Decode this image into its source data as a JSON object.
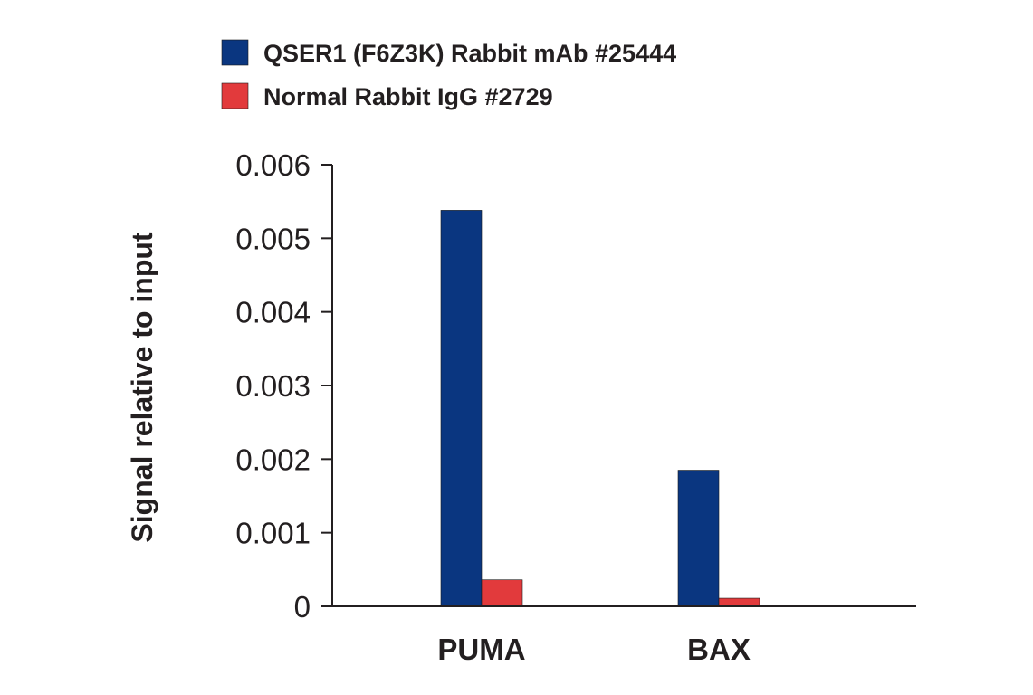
{
  "chart_data": {
    "type": "bar",
    "categories": [
      "PUMA",
      "BAX"
    ],
    "series": [
      {
        "name": "QSER1 (F6Z3K) Rabbit mAb #25444",
        "color": "#0a3680",
        "values": [
          0.00538,
          0.00185
        ]
      },
      {
        "name": "Normal Rabbit IgG #2729",
        "color": "#e23a3c",
        "values": [
          0.00036,
          0.00011
        ]
      }
    ],
    "title": "",
    "xlabel": "",
    "ylabel": "Signal relative to input",
    "ylim": [
      0,
      0.006
    ],
    "yticks": [
      0,
      0.001,
      0.002,
      0.003,
      0.004,
      0.005,
      0.006
    ],
    "ytick_labels": [
      "0",
      "0.001",
      "0.002",
      "0.003",
      "0.004",
      "0.005",
      "0.006"
    ],
    "grid": false,
    "legend_position": "top-left"
  }
}
